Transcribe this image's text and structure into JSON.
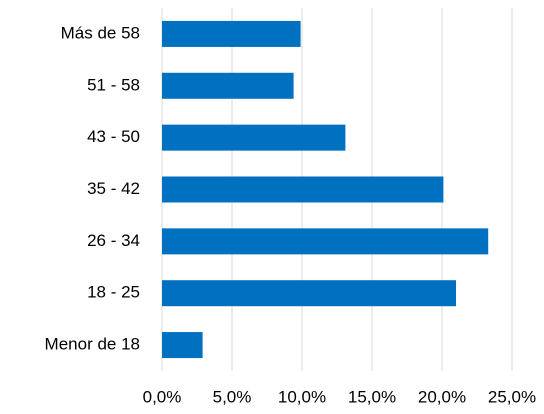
{
  "chart_data": {
    "type": "bar",
    "orientation": "horizontal",
    "categories": [
      "Más de 58",
      "51 - 58",
      "43 - 50",
      "35 - 42",
      "26 - 34",
      "18 - 25",
      "Menor de 18"
    ],
    "values": [
      9.9,
      9.4,
      13.1,
      20.1,
      23.3,
      21.0,
      2.9
    ],
    "color": "#0070c0",
    "xlim": [
      0,
      25
    ],
    "xticks": [
      {
        "value": 0,
        "label": "0,0%"
      },
      {
        "value": 5,
        "label": "5,0%"
      },
      {
        "value": 10,
        "label": "10,0%"
      },
      {
        "value": 15,
        "label": "15,0%"
      },
      {
        "value": 20,
        "label": "20,0%"
      },
      {
        "value": 25,
        "label": "25,0%"
      }
    ],
    "grid": true
  }
}
